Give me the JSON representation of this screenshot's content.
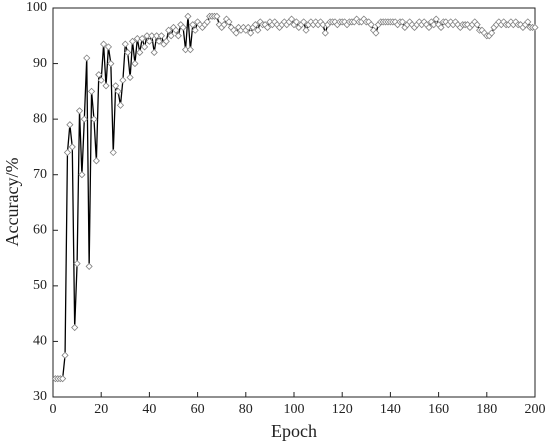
{
  "chart_data": {
    "type": "line",
    "x_label": "Epoch",
    "y_label": "Accuracy/%",
    "xlim": [
      0,
      200
    ],
    "xticks": [
      0,
      20,
      40,
      60,
      80,
      100,
      120,
      140,
      160,
      180,
      200
    ],
    "ylim": [
      30,
      100
    ],
    "yticks": [
      30,
      40,
      50,
      60,
      70,
      80,
      90,
      100
    ],
    "grid": false,
    "x": [
      1,
      2,
      3,
      4,
      5,
      6,
      7,
      8,
      9,
      10,
      11,
      12,
      13,
      14,
      15,
      16,
      17,
      18,
      19,
      20,
      21,
      22,
      23,
      24,
      25,
      26,
      27,
      28,
      29,
      30,
      31,
      32,
      33,
      34,
      35,
      36,
      37,
      38,
      39,
      40,
      41,
      42,
      43,
      44,
      45,
      46,
      47,
      48,
      49,
      50,
      51,
      52,
      53,
      54,
      55,
      56,
      57,
      58,
      59,
      60,
      61,
      62,
      63,
      64,
      65,
      66,
      67,
      68,
      69,
      70,
      71,
      72,
      73,
      74,
      75,
      76,
      77,
      78,
      79,
      80,
      81,
      82,
      83,
      84,
      85,
      86,
      87,
      88,
      89,
      90,
      91,
      92,
      93,
      94,
      95,
      96,
      97,
      98,
      99,
      100,
      101,
      102,
      103,
      104,
      105,
      106,
      107,
      108,
      109,
      110,
      111,
      112,
      113,
      114,
      115,
      116,
      117,
      118,
      119,
      120,
      121,
      122,
      123,
      124,
      125,
      126,
      127,
      128,
      129,
      130,
      131,
      132,
      133,
      134,
      135,
      136,
      137,
      138,
      139,
      140,
      141,
      142,
      143,
      144,
      145,
      146,
      147,
      148,
      149,
      150,
      151,
      152,
      153,
      154,
      155,
      156,
      157,
      158,
      159,
      160,
      161,
      162,
      163,
      164,
      165,
      166,
      167,
      168,
      169,
      170,
      171,
      172,
      173,
      174,
      175,
      176,
      177,
      178,
      179,
      180,
      181,
      182,
      183,
      184,
      185,
      186,
      187,
      188,
      189,
      190,
      191,
      192,
      193,
      194,
      195,
      196,
      197,
      198,
      199,
      200
    ],
    "series": [
      {
        "color": "#000000",
        "marker_color": "#808080",
        "values": [
          33.3,
          33.3,
          33.3,
          33.3,
          37.5,
          74,
          79,
          75,
          42.5,
          54,
          81.5,
          70,
          80,
          91,
          53.5,
          85,
          80,
          72.5,
          88,
          87,
          93.5,
          86,
          93,
          90,
          74,
          86,
          85,
          82.5,
          87,
          93.5,
          92,
          87.5,
          94,
          90,
          94.5,
          92,
          94.5,
          93,
          95,
          94,
          95,
          92,
          95,
          94,
          95,
          93.5,
          94,
          96,
          95,
          96.5,
          96,
          95,
          97,
          96.5,
          92.5,
          98.5,
          92.5,
          97,
          96,
          97.5,
          97,
          96.5,
          97,
          97.5,
          98.5,
          98.5,
          98.5,
          98.5,
          97,
          96.5,
          97,
          98,
          97.5,
          96.5,
          96,
          95.5,
          96.5,
          96,
          96.5,
          96,
          96.5,
          95.5,
          96.5,
          97,
          96,
          97.5,
          97,
          97,
          96.5,
          97.5,
          97,
          97.5,
          97,
          96.5,
          97,
          97.5,
          97,
          97.5,
          98,
          97,
          97.5,
          96.5,
          97,
          97.5,
          96,
          97,
          97.5,
          97,
          97.5,
          97,
          97.5,
          97,
          95.5,
          97,
          97.5,
          97.5,
          97.5,
          97,
          97.5,
          97.5,
          97.5,
          97,
          97.5,
          97.5,
          97.5,
          98,
          97.5,
          97.5,
          98,
          97.5,
          97.5,
          97,
          96,
          95.5,
          97,
          97.5,
          97.5,
          97.5,
          97.5,
          97.5,
          97.5,
          97.5,
          97,
          97.5,
          97.5,
          96.5,
          97,
          97.5,
          97,
          96.5,
          97,
          97.5,
          97,
          97.5,
          97,
          96.5,
          97.5,
          97,
          98,
          97,
          96.5,
          97.5,
          97.5,
          97,
          97.5,
          97,
          97.5,
          97,
          96.5,
          97,
          97,
          97,
          96.5,
          97,
          97.5,
          97,
          96,
          96,
          95.5,
          95,
          95,
          95.5,
          96.5,
          97,
          97.5,
          97,
          97.5,
          97,
          97,
          97.5,
          97,
          97.5,
          97,
          97,
          96.5,
          97,
          97.5,
          96.5,
          96.5,
          96.5
        ]
      }
    ]
  }
}
